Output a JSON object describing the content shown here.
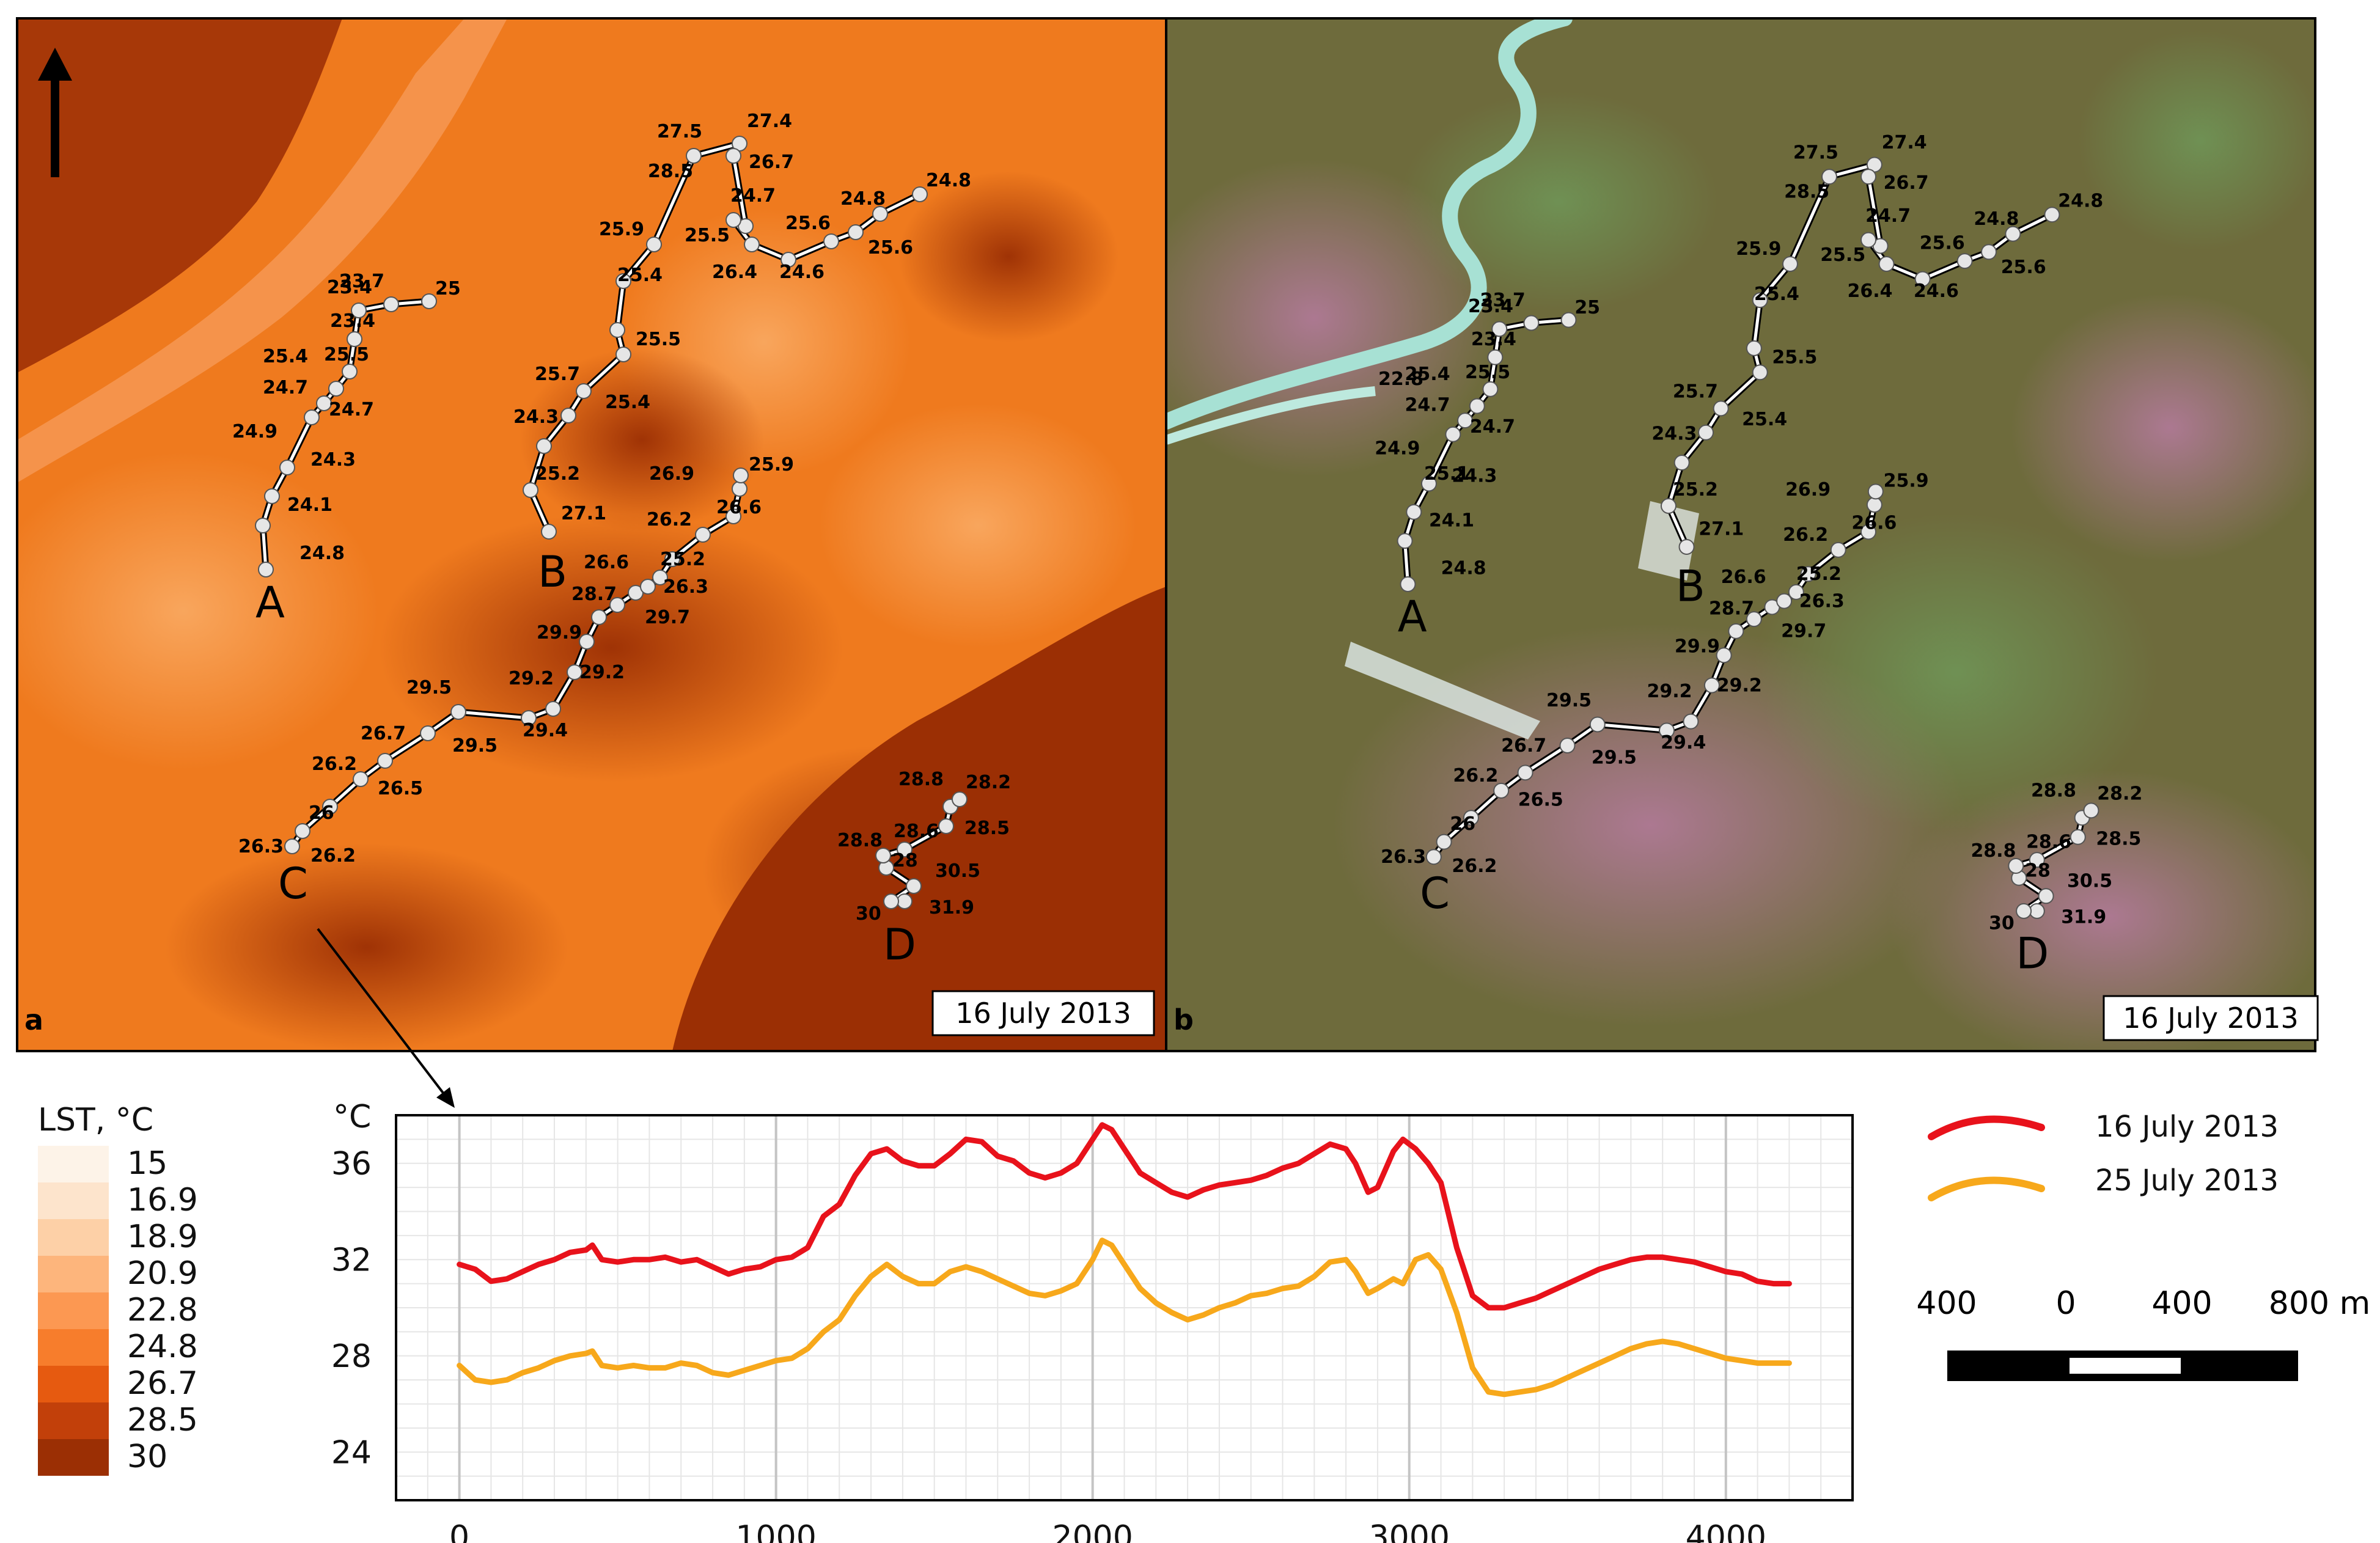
{
  "panel_a": {
    "tag": "a",
    "date": "16 July 2013"
  },
  "panel_b": {
    "tag": "b",
    "date": "16 July 2013"
  },
  "north_arrow": "north-arrow-icon",
  "lst_legend": {
    "title": "LST, °C",
    "classes": [
      {
        "label": "15",
        "color": "#fdf3e8"
      },
      {
        "label": "16.9",
        "color": "#fde4cc"
      },
      {
        "label": "18.9",
        "color": "#fdd0a7"
      },
      {
        "label": "20.9",
        "color": "#fdb57c"
      },
      {
        "label": "22.8",
        "color": "#fc9852"
      },
      {
        "label": "24.8",
        "color": "#f77d2c"
      },
      {
        "label": "26.7",
        "color": "#e65a10"
      },
      {
        "label": "28.5",
        "color": "#c2400a"
      },
      {
        "label": "30",
        "color": "#9b2f04"
      }
    ]
  },
  "transects": {
    "A": {
      "label": "A",
      "temps": [
        "24.8",
        "24.1",
        "24.3",
        "24.9",
        "24.7",
        "24.7",
        "25.5",
        "25.4",
        "23.4",
        "23.4",
        "23.7",
        "25"
      ]
    },
    "B": {
      "label": "B",
      "temps": [
        "27.1",
        "25.2",
        "24.3",
        "25.4",
        "25.7",
        "25.5",
        "25.4",
        "25.9",
        "28.5",
        "27.5",
        "27.4",
        "26.7",
        "24.7",
        "25.5",
        "26.4",
        "24.6",
        "25.6",
        "25.6",
        "24.8",
        "24.8"
      ]
    },
    "C": {
      "label": "C",
      "temps": [
        "26.2",
        "26.3",
        "26",
        "26.5",
        "26.2",
        "26.7",
        "29.5",
        "29.5",
        "29.4",
        "29.2",
        "29.2",
        "29.9",
        "29.7",
        "28.7",
        "26.6",
        "26.3",
        "25.2",
        "26.2",
        "26.6",
        "26.9",
        "25.9"
      ]
    },
    "D": {
      "label": "D",
      "temps": [
        "31.9",
        "30",
        "30.5",
        "28",
        "28.8",
        "28.6",
        "28.5",
        "28.8",
        "28.2"
      ]
    },
    "B_panel_b_extra": "22.8",
    "B_panel_b_extra2": "25.1"
  },
  "colors": {
    "series_16": "#e8121b",
    "series_25": "#f7a81b"
  },
  "chart_data": {
    "type": "line",
    "ylabel": "°C",
    "xlabel": "",
    "xlim": [
      -200,
      4400
    ],
    "ylim": [
      22,
      38
    ],
    "xticks": [
      0,
      1000,
      2000,
      3000,
      4000
    ],
    "yticks": [
      24,
      28,
      32,
      36
    ],
    "grid": true,
    "series": [
      {
        "name": "16 July 2013",
        "color": "#e8121b",
        "x": [
          0,
          50,
          100,
          150,
          200,
          250,
          300,
          350,
          400,
          420,
          450,
          500,
          550,
          600,
          650,
          700,
          750,
          800,
          850,
          900,
          950,
          1000,
          1050,
          1100,
          1150,
          1200,
          1250,
          1300,
          1350,
          1400,
          1450,
          1500,
          1550,
          1600,
          1650,
          1700,
          1750,
          1800,
          1850,
          1900,
          1950,
          2000,
          2030,
          2060,
          2100,
          2150,
          2200,
          2250,
          2300,
          2350,
          2400,
          2450,
          2500,
          2550,
          2600,
          2650,
          2700,
          2750,
          2800,
          2830,
          2870,
          2900,
          2950,
          2980,
          3020,
          3060,
          3100,
          3150,
          3200,
          3250,
          3300,
          3350,
          3400,
          3450,
          3500,
          3550,
          3600,
          3650,
          3700,
          3750,
          3800,
          3850,
          3900,
          3950,
          4000,
          4050,
          4100,
          4150,
          4200
        ],
        "y": [
          31.8,
          31.6,
          31.1,
          31.2,
          31.5,
          31.8,
          32.0,
          32.3,
          32.4,
          32.6,
          32.0,
          31.9,
          32.0,
          32.0,
          32.1,
          31.9,
          32.0,
          31.7,
          31.4,
          31.6,
          31.7,
          32.0,
          32.1,
          32.5,
          33.8,
          34.3,
          35.5,
          36.4,
          36.6,
          36.1,
          35.9,
          35.9,
          36.4,
          37.0,
          36.9,
          36.3,
          36.1,
          35.6,
          35.4,
          35.6,
          36.0,
          37.0,
          37.6,
          37.4,
          36.6,
          35.6,
          35.2,
          34.8,
          34.6,
          34.9,
          35.1,
          35.2,
          35.3,
          35.5,
          35.8,
          36.0,
          36.4,
          36.8,
          36.6,
          36.0,
          34.8,
          35.0,
          36.5,
          37.0,
          36.6,
          36.0,
          35.2,
          32.5,
          30.5,
          30.0,
          30.0,
          30.2,
          30.4,
          30.7,
          31.0,
          31.3,
          31.6,
          31.8,
          32.0,
          32.1,
          32.1,
          32.0,
          31.9,
          31.7,
          31.5,
          31.4,
          31.1,
          31.0,
          31.0
        ]
      },
      {
        "name": "25 July 2013",
        "color": "#f7a81b",
        "x": [
          0,
          50,
          100,
          150,
          200,
          250,
          300,
          350,
          400,
          420,
          450,
          500,
          550,
          600,
          650,
          700,
          750,
          800,
          850,
          900,
          950,
          1000,
          1050,
          1100,
          1150,
          1200,
          1250,
          1300,
          1350,
          1400,
          1450,
          1500,
          1550,
          1600,
          1650,
          1700,
          1750,
          1800,
          1850,
          1900,
          1950,
          2000,
          2030,
          2060,
          2100,
          2150,
          2200,
          2250,
          2300,
          2350,
          2400,
          2450,
          2500,
          2550,
          2600,
          2650,
          2700,
          2750,
          2800,
          2830,
          2870,
          2900,
          2950,
          2980,
          3020,
          3060,
          3100,
          3150,
          3200,
          3250,
          3300,
          3350,
          3400,
          3450,
          3500,
          3550,
          3600,
          3650,
          3700,
          3750,
          3800,
          3850,
          3900,
          3950,
          4000,
          4050,
          4100,
          4150,
          4200
        ],
        "y": [
          27.6,
          27.0,
          26.9,
          27.0,
          27.3,
          27.5,
          27.8,
          28.0,
          28.1,
          28.2,
          27.6,
          27.5,
          27.6,
          27.5,
          27.5,
          27.7,
          27.6,
          27.3,
          27.2,
          27.4,
          27.6,
          27.8,
          27.9,
          28.3,
          29.0,
          29.5,
          30.5,
          31.3,
          31.8,
          31.3,
          31.0,
          31.0,
          31.5,
          31.7,
          31.5,
          31.2,
          30.9,
          30.6,
          30.5,
          30.7,
          31.0,
          32.0,
          32.8,
          32.6,
          31.8,
          30.8,
          30.2,
          29.8,
          29.5,
          29.7,
          30.0,
          30.2,
          30.5,
          30.6,
          30.8,
          30.9,
          31.3,
          31.9,
          32.0,
          31.5,
          30.6,
          30.8,
          31.2,
          31.0,
          32.0,
          32.2,
          31.6,
          29.8,
          27.5,
          26.5,
          26.4,
          26.5,
          26.6,
          26.8,
          27.1,
          27.4,
          27.7,
          28.0,
          28.3,
          28.5,
          28.6,
          28.5,
          28.3,
          28.1,
          27.9,
          27.8,
          27.7,
          27.7,
          27.7
        ]
      }
    ]
  },
  "chart_legend": {
    "items": [
      "16 July 2013",
      "25 July 2013"
    ]
  },
  "scale_bar": {
    "labels": [
      "400",
      "0",
      "400",
      "800 m"
    ]
  }
}
